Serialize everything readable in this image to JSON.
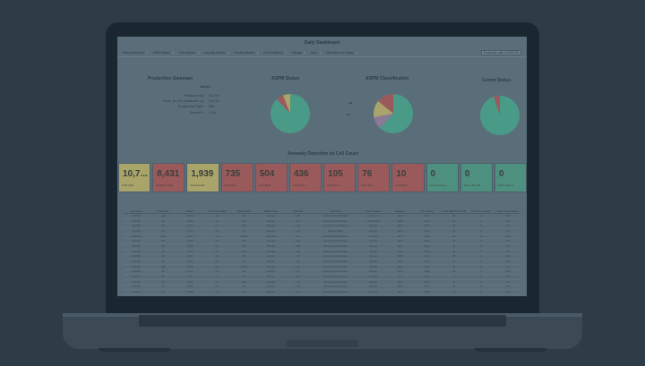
{
  "dashboard": {
    "title": "Daily Dashboard",
    "nav": [
      "Daily Dashboard",
      "ASPM Status",
      "Cell Analysis",
      "Anomaly Review",
      "Process Review",
      "Cell Monitoring",
      "Settings",
      "Help",
      "Select the Line Option"
    ],
    "selected_option": "Production date 10/15/2019"
  },
  "production_summary": {
    "title": "Production Summary",
    "value_header": "Values",
    "rows": [
      {
        "label": "Produced (#)",
        "value": "20,214"
      },
      {
        "label": "Prod. (# Cell, produced, #)",
        "value": "19,274"
      },
      {
        "label": "Production Ratio",
        "value": "460"
      },
      {
        "label": "Defect %",
        "value": "2.3%"
      }
    ]
  },
  "charts": {
    "aspm_status": {
      "title": "ASPM Status"
    },
    "aspm_classification": {
      "title": "ASPM Classification"
    },
    "comm_status": {
      "title": "Comm Status"
    }
  },
  "anomaly": {
    "title": "Anomaly Detection by Cell Count",
    "tiles": [
      {
        "value": "10,7...",
        "caption": "Total Cells",
        "color": "yellow"
      },
      {
        "value": "8,431",
        "caption": "Defective Cells",
        "color": "red"
      },
      {
        "value": "1,939",
        "caption": "Normal Cells",
        "color": "yellow"
      },
      {
        "value": "735",
        "caption": "Anomaly A",
        "color": "red"
      },
      {
        "value": "504",
        "caption": "Anomaly B",
        "color": "red"
      },
      {
        "value": "436",
        "caption": "Anomaly C",
        "color": "red"
      },
      {
        "value": "105",
        "caption": "Anomaly D",
        "color": "red"
      },
      {
        "value": "76",
        "caption": "Anomaly E",
        "color": "red"
      },
      {
        "value": "10",
        "caption": "Anomaly F",
        "color": "red"
      },
      {
        "value": "0",
        "caption": "Comm Issue A",
        "color": "green"
      },
      {
        "value": "0",
        "caption": "Comm Issue B",
        "color": "green"
      },
      {
        "value": "0",
        "caption": "Comm Issue C",
        "color": "green"
      }
    ]
  },
  "table": {
    "columns": [
      "Cell Name",
      "Production",
      "Defect",
      "Production Ratio",
      "ASPM Status",
      "ASPM Class",
      "Yield (%)",
      "Cell Status",
      "Comm Status",
      "Voltage 1",
      "Volt. Range",
      "Cycle Start Threshold",
      "Process Counter",
      "Cycle Count Status"
    ],
    "rows": [
      [
        "Cell 001",
        "1,24",
        "23.12",
        "1.2",
        "OK",
        "Normal",
        "1.34",
        "Running Normal Status",
        "Normal",
        "121.4",
        "122.1",
        "16",
        "0",
        "1.87"
      ],
      [
        "Cell 002",
        "96",
        "19.23",
        "1.0",
        "OK",
        "Normal",
        "1.12",
        "Running Normal Status",
        "Operational",
        "113.8",
        "117.6",
        "31",
        "0",
        "0.97"
      ],
      [
        "Cell 003",
        "117",
        "20.14",
        "1.1",
        "Alert",
        "Anomaly",
        "1.45",
        "Running Normal Status",
        "Normal",
        "124.9",
        "118.2",
        "19",
        "0",
        "1.22"
      ],
      [
        "Cell 004",
        "68",
        "12.04",
        "0.8",
        "OK",
        "Normal",
        "1.03",
        "Running Warm",
        "Normal",
        "116.0",
        "114.7",
        "12",
        "0",
        "2.14"
      ],
      [
        "Cell 005",
        "142",
        "26.31",
        "1.3",
        "Defect",
        "Anomaly",
        "1.61",
        "Running Normal Status",
        "Normal",
        "127.5",
        "120.9",
        "28",
        "0",
        "1.08"
      ],
      [
        "Cell 006",
        "89",
        "15.88",
        "0.9",
        "OK",
        "Normal",
        "1.09",
        "Running Normal Status",
        "Normal",
        "119.2",
        "118.3",
        "22",
        "0",
        "0.78"
      ],
      [
        "Cell 007",
        "54",
        "10.42",
        "0.7",
        "OK",
        "Normal",
        "0.98",
        "Running Normal Status",
        "Normal",
        "112.7",
        "115.1",
        "17",
        "0",
        "1.35"
      ],
      [
        "Cell 008",
        "73",
        "13.66",
        "0.8",
        "Alert",
        "Anomaly",
        "1.18",
        "Running Normal Status",
        "Normal",
        "121.0",
        "119.6",
        "14",
        "0",
        "0.54"
      ],
      [
        "Cell 009",
        "101",
        "18.27",
        "1.0",
        "OK",
        "Normal",
        "1.27",
        "Running Normal Status",
        "Normal",
        "118.8",
        "117.0",
        "25",
        "0",
        "1.66"
      ],
      [
        "Cell 010",
        "66",
        "11.93",
        "0.8",
        "OK",
        "Normal",
        "1.04",
        "Running Normal Status",
        "Normal",
        "115.4",
        "116.2",
        "11",
        "0",
        "0.92"
      ],
      [
        "Cell 011",
        "128",
        "22.05",
        "1.2",
        "Defect",
        "Anomaly",
        "1.39",
        "Running Normal Status",
        "Normal",
        "125.3",
        "121.4",
        "30",
        "0",
        "1.41"
      ],
      [
        "Cell 012",
        "85",
        "14.72",
        "0.9",
        "OK",
        "Normal",
        "1.11",
        "Running Normal Status",
        "Normal",
        "117.6",
        "116.8",
        "18",
        "0",
        "0.63"
      ],
      [
        "Cell 013",
        "59",
        "10.87",
        "0.7",
        "OK",
        "Normal",
        "0.95",
        "Running Normal Status",
        "Normal",
        "113.1",
        "114.4",
        "15",
        "0",
        "1.18"
      ],
      [
        "Cell 014",
        "112",
        "19.64",
        "1.1",
        "Alert",
        "Anomaly",
        "1.33",
        "Running Normal Status",
        "Normal",
        "122.9",
        "119.9",
        "21",
        "0",
        "1.02"
      ],
      [
        "Cell 015",
        "77",
        "13.20",
        "0.8",
        "OK",
        "Normal",
        "1.06",
        "Running Normal Status",
        "Normal",
        "116.5",
        "117.3",
        "13",
        "0",
        "0.71"
      ],
      [
        "Cell 016",
        "94",
        "16.58",
        "1.0",
        "OK",
        "Normal",
        "1.15",
        "Running Normal Status",
        "Normal",
        "120.2",
        "118.5",
        "24",
        "0",
        "1.29"
      ],
      [
        "Cell 017",
        "63",
        "11.12",
        "0.7",
        "OK",
        "Normal",
        "1.01",
        "Running Normal Status",
        "Normal",
        "114.8",
        "115.6",
        "16",
        "0",
        "0.88"
      ],
      [
        "Cell 018",
        "105",
        "18.90",
        "1.0",
        "Defect",
        "Anomaly",
        "1.30",
        "Running Normal Status",
        "Normal",
        "123.7",
        "120.4",
        "27",
        "0",
        "1.50"
      ],
      [
        "Cell 019",
        "71",
        "12.48",
        "0.8",
        "OK",
        "Normal",
        "1.05",
        "Running Normal Status",
        "Normal",
        "116.9",
        "116.0",
        "12",
        "0",
        "0.66"
      ],
      [
        "Cell 020",
        "88",
        "15.34",
        "0.9",
        "OK",
        "Normal",
        "1.10",
        "Running Normal Status",
        "Normal",
        "118.1",
        "117.7",
        "20",
        "0",
        "1.13"
      ]
    ]
  },
  "colors": {
    "background": "#2e3c48",
    "screen": "#5a6e7a",
    "tile_yellow": "#a8a46a",
    "tile_red": "#9a5a5c",
    "tile_green": "#4e9080",
    "pie_main": "#4a9a88"
  }
}
